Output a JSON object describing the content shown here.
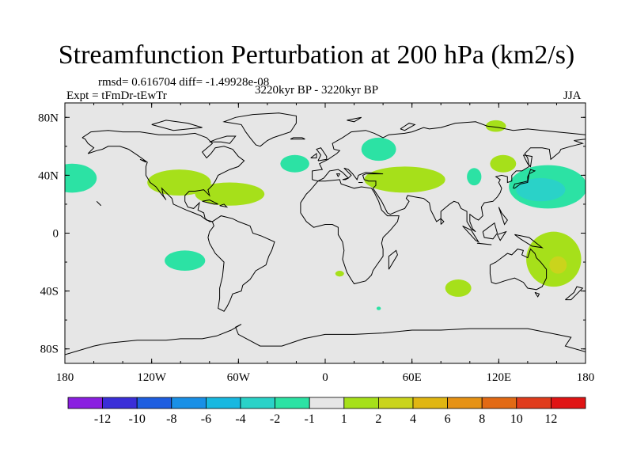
{
  "chart_data": {
    "type": "heatmap",
    "title": "Streamfunction Perturbation at 200 hPa (km2/s)",
    "stats_label": "rmsd= 0.616704 diff= -1.49928e-08",
    "experiment_label": "Expt = tFmDr-tEwTr",
    "period_label": "3220kyr BP - 3220kyr BP",
    "season_label": "JJA",
    "xlim": [
      -180,
      180
    ],
    "ylim": [
      -90,
      90
    ],
    "x_ticks": [
      {
        "value": -180,
        "label": "180"
      },
      {
        "value": -120,
        "label": "120W"
      },
      {
        "value": -60,
        "label": "60W"
      },
      {
        "value": 0,
        "label": "0"
      },
      {
        "value": 60,
        "label": "60E"
      },
      {
        "value": 120,
        "label": "120E"
      },
      {
        "value": 180,
        "label": "180"
      }
    ],
    "y_ticks": [
      {
        "value": 80,
        "label": "80N"
      },
      {
        "value": 40,
        "label": "40N"
      },
      {
        "value": 0,
        "label": "0"
      },
      {
        "value": -40,
        "label": "40S"
      },
      {
        "value": -80,
        "label": "80S"
      }
    ],
    "colorbar": {
      "colors": [
        "#8a1fe0",
        "#3a2ed8",
        "#1e5ee0",
        "#1990e6",
        "#18b8e0",
        "#2ad2c8",
        "#2ce2a4",
        "#e6e6e6",
        "#a6e01a",
        "#cad41c",
        "#e0b612",
        "#e69214",
        "#e26a14",
        "#e03c1c",
        "#e01414"
      ],
      "labels": [
        "-12",
        "-10",
        "-8",
        "-6",
        "-4",
        "-2",
        "-1",
        "1",
        "2",
        "4",
        "6",
        "8",
        "10",
        "12"
      ]
    },
    "anomalies": [
      {
        "lon": -175,
        "lat": 38,
        "rx": 17,
        "ry": 10,
        "value": -1.5
      },
      {
        "lon": -101,
        "lat": 35,
        "rx": 22,
        "ry": 9,
        "value": 1.5
      },
      {
        "lon": -66,
        "lat": 27,
        "rx": 24,
        "ry": 8,
        "value": 1.5
      },
      {
        "lon": -97,
        "lat": -19,
        "rx": 14,
        "ry": 7,
        "value": -1.5
      },
      {
        "lon": 37,
        "lat": 58,
        "rx": 12,
        "ry": 8,
        "value": -1.5
      },
      {
        "lon": -21,
        "lat": 48,
        "rx": 10,
        "ry": 6,
        "value": -1.5
      },
      {
        "lon": 55,
        "lat": 37,
        "rx": 28,
        "ry": 9,
        "value": 1.5
      },
      {
        "lon": 103,
        "lat": 39,
        "rx": 5,
        "ry": 6,
        "value": -1.5
      },
      {
        "lon": 118,
        "lat": 74,
        "rx": 7,
        "ry": 4,
        "value": 1.5
      },
      {
        "lon": 123,
        "lat": 48,
        "rx": 9,
        "ry": 6,
        "value": 1.5
      },
      {
        "lon": 154,
        "lat": 32,
        "rx": 27,
        "ry": 15,
        "value": -1.5
      },
      {
        "lon": 149,
        "lat": 30,
        "rx": 17,
        "ry": 8,
        "value": -3
      },
      {
        "lon": 158,
        "lat": -18,
        "rx": 19,
        "ry": 19,
        "value": 1.5
      },
      {
        "lon": 161,
        "lat": -22,
        "rx": 6,
        "ry": 6,
        "value": 3
      },
      {
        "lon": 92,
        "lat": -38,
        "rx": 9,
        "ry": 6,
        "value": 1.5
      },
      {
        "lon": 10,
        "lat": -28,
        "rx": 3,
        "ry": 2,
        "value": 1.5
      },
      {
        "lon": 37,
        "lat": -52,
        "rx": 1.5,
        "ry": 1.2,
        "value": -1.5
      }
    ]
  }
}
